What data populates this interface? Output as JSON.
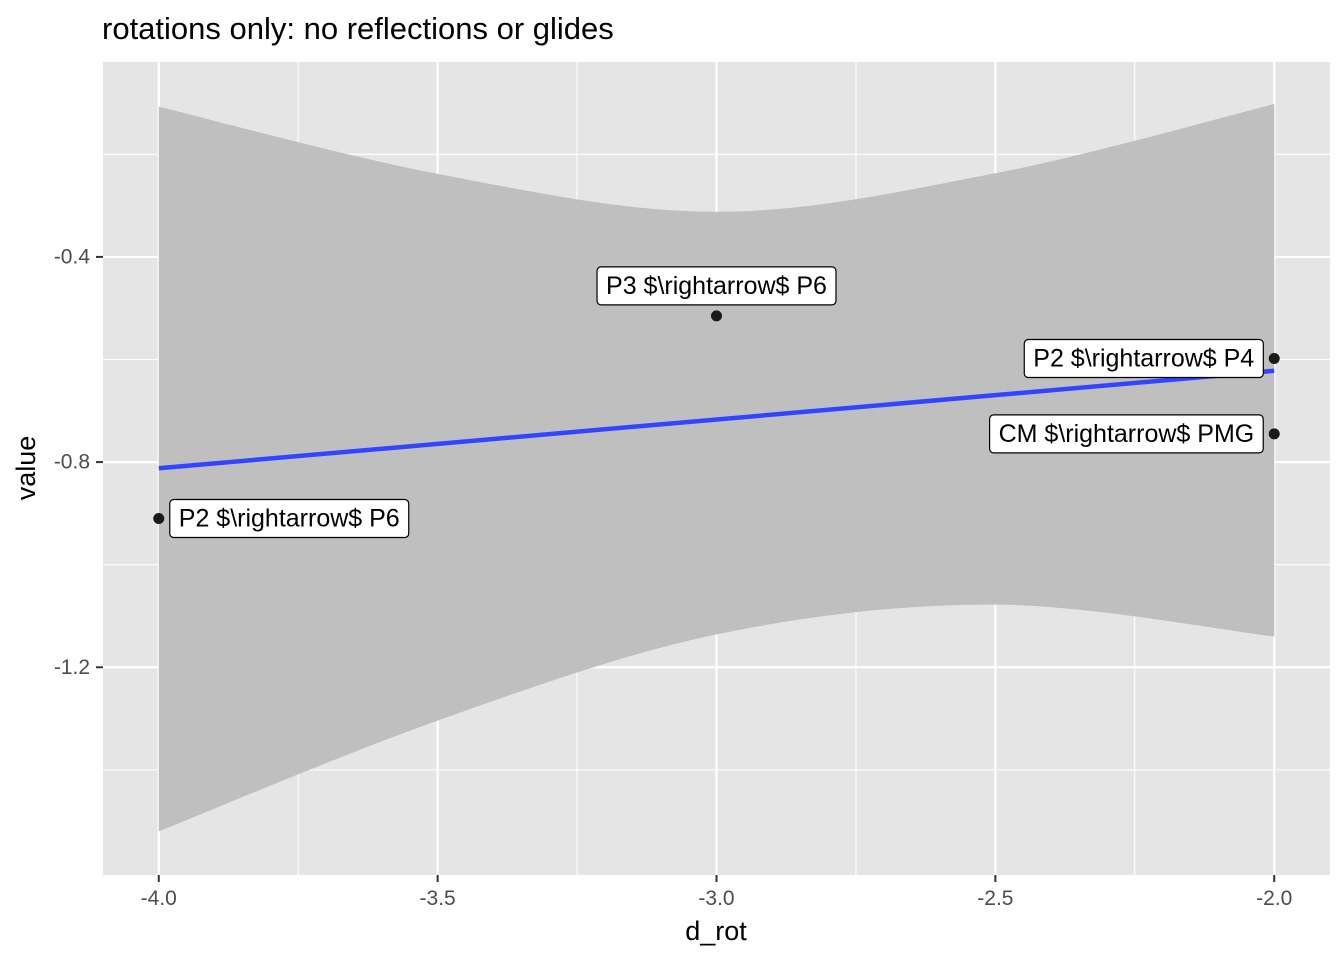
{
  "chart_data": {
    "type": "scatter",
    "title": "rotations only: no reflections or glides",
    "xlabel": "d_rot",
    "ylabel": "value",
    "xlim": [
      -4.1,
      -1.9
    ],
    "ylim": [
      -1.605,
      -0.02
    ],
    "x_ticks": [
      -4.0,
      -3.5,
      -3.0,
      -2.5,
      -2.0
    ],
    "x_tick_labels": [
      "-4.0",
      "-3.5",
      "-3.0",
      "-2.5",
      "-2.0"
    ],
    "y_ticks": [
      -0.4,
      -0.8,
      -1.2
    ],
    "y_tick_labels": [
      "-0.4",
      "-0.8",
      "-1.2"
    ],
    "grid": true,
    "legend": "none",
    "points": [
      {
        "x": -3.0,
        "y": -0.515,
        "label": "P3 $\\rightarrow$ P6"
      },
      {
        "x": -2.0,
        "y": -0.598,
        "label": "P2 $\\rightarrow$ P4"
      },
      {
        "x": -2.0,
        "y": -0.745,
        "label": "CM $\\rightarrow$ PMG"
      },
      {
        "x": -4.0,
        "y": -0.91,
        "label": "P2 $\\rightarrow$ P6"
      }
    ],
    "fit_line": {
      "x": [
        -4.0,
        -2.0
      ],
      "y": [
        -0.812,
        -0.622
      ]
    },
    "ci_band": {
      "x": [
        -4.0,
        -3.5,
        -3.0,
        -2.5,
        -2.0
      ],
      "upper": [
        -0.107,
        -0.238,
        -0.312,
        -0.237,
        -0.102
      ],
      "lower": [
        -1.52,
        -1.304,
        -1.136,
        -1.078,
        -1.14
      ]
    },
    "colors": {
      "panel": "#e5e5e5",
      "grid": "#ffffff",
      "band": "#bfbfbf",
      "line": "#3344ff",
      "point": "#1a1a1a"
    }
  }
}
